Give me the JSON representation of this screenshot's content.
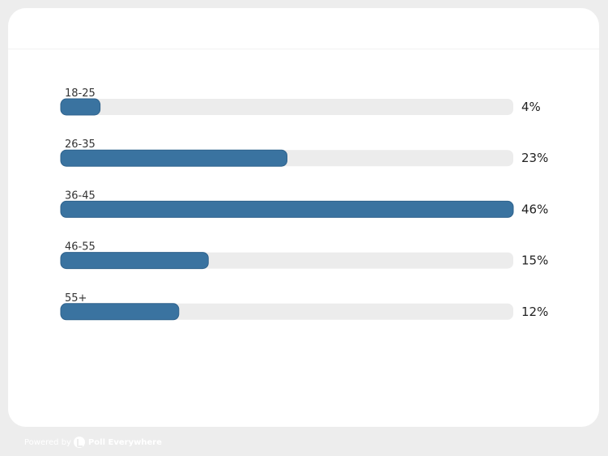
{
  "chart_data": {
    "type": "bar",
    "orientation": "horizontal",
    "categories": [
      "18-25",
      "26-35",
      "36-45",
      "46-55",
      "55+"
    ],
    "values": [
      4,
      23,
      46,
      15,
      12
    ],
    "value_labels": [
      "4%",
      "23%",
      "46%",
      "15%",
      "12%"
    ],
    "xlim": [
      0,
      46
    ],
    "grid": false,
    "bar_color": "#3a73a0",
    "track_color": "#ececec"
  },
  "footer": {
    "powered_by": "Powered by",
    "brand": "Poll Everywhere"
  }
}
